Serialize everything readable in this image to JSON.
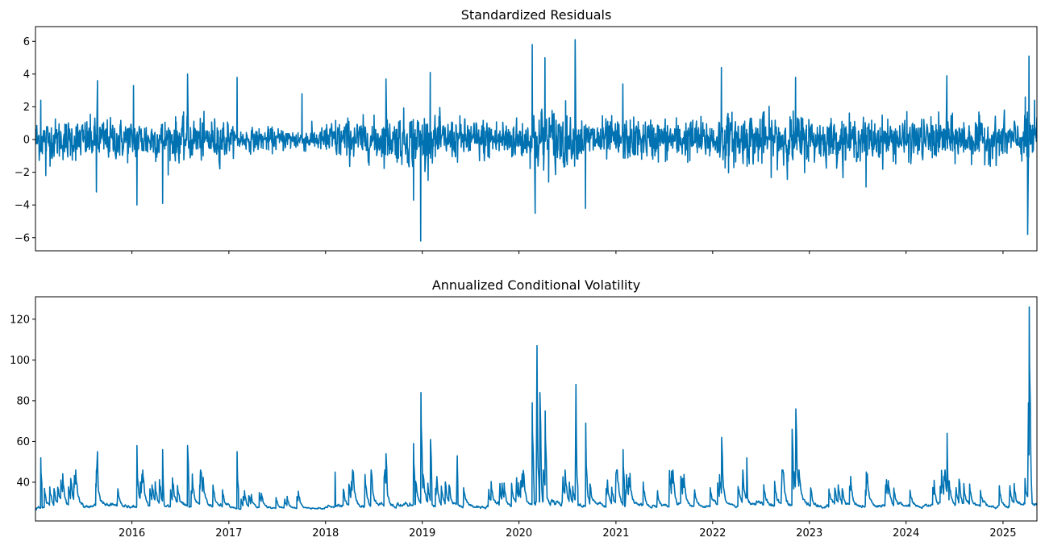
{
  "chart_data": [
    {
      "type": "line",
      "title": "Standardized Residuals",
      "xlabel": "",
      "ylabel": "",
      "x_range": [
        "2015-01-02",
        "2025-05-09"
      ],
      "ylim": [
        -6.8,
        6.9
      ],
      "y_ticks": [
        -6,
        -4,
        -2,
        0,
        2,
        4,
        6
      ],
      "x_ticks_visible": false,
      "grid": false,
      "color": "#0072B2",
      "series": [
        {
          "frequency": "trading-daily",
          "baseline_range": [
            -1.5,
            1.5
          ],
          "notable_points": [
            {
              "x": "2015-01-22",
              "y": 2.4
            },
            {
              "x": "2015-02-10",
              "y": -2.2
            },
            {
              "x": "2015-08-24",
              "y": 3.6
            },
            {
              "x": "2015-08-20",
              "y": -3.2
            },
            {
              "x": "2016-01-07",
              "y": 3.3
            },
            {
              "x": "2016-01-20",
              "y": -4.0
            },
            {
              "x": "2016-04-26",
              "y": -3.9
            },
            {
              "x": "2016-07-29",
              "y": 4.0
            },
            {
              "x": "2017-02-01",
              "y": 3.8
            },
            {
              "x": "2017-10-04",
              "y": 2.8
            },
            {
              "x": "2018-08-17",
              "y": 3.7
            },
            {
              "x": "2018-11-29",
              "y": -3.7
            },
            {
              "x": "2018-12-26",
              "y": -6.2
            },
            {
              "x": "2019-01-31",
              "y": 4.1
            },
            {
              "x": "2020-02-20",
              "y": 5.8
            },
            {
              "x": "2020-03-02",
              "y": -4.5
            },
            {
              "x": "2020-04-08",
              "y": 5.0
            },
            {
              "x": "2020-07-31",
              "y": 6.1
            },
            {
              "x": "2020-09-08",
              "y": -4.2
            },
            {
              "x": "2021-01-27",
              "y": 3.4
            },
            {
              "x": "2022-02-03",
              "y": 4.4
            },
            {
              "x": "2022-11-10",
              "y": 3.8
            },
            {
              "x": "2023-08-03",
              "y": -2.9
            },
            {
              "x": "2024-06-03",
              "y": 3.9
            },
            {
              "x": "2025-04-04",
              "y": -5.8
            },
            {
              "x": "2025-04-09",
              "y": 5.1
            }
          ]
        }
      ]
    },
    {
      "type": "line",
      "title": "Annualized Conditional Volatility",
      "xlabel": "",
      "ylabel": "",
      "x_range": [
        "2015-01-02",
        "2025-05-09"
      ],
      "ylim": [
        21,
        131
      ],
      "y_ticks": [
        40,
        60,
        80,
        100,
        120
      ],
      "x_ticks": [
        "2016",
        "2017",
        "2018",
        "2019",
        "2020",
        "2021",
        "2022",
        "2023",
        "2024",
        "2025"
      ],
      "grid": false,
      "color": "#0072B2",
      "series": [
        {
          "frequency": "trading-daily",
          "baseline_level": 26,
          "notable_points": [
            {
              "x": "2015-01-22",
              "y": 52
            },
            {
              "x": "2015-08-24",
              "y": 55
            },
            {
              "x": "2016-01-20",
              "y": 58
            },
            {
              "x": "2016-04-26",
              "y": 56
            },
            {
              "x": "2016-07-29",
              "y": 58
            },
            {
              "x": "2017-02-01",
              "y": 55
            },
            {
              "x": "2018-02-06",
              "y": 45
            },
            {
              "x": "2018-08-17",
              "y": 54
            },
            {
              "x": "2018-11-29",
              "y": 59
            },
            {
              "x": "2018-12-27",
              "y": 84
            },
            {
              "x": "2019-02-01",
              "y": 61
            },
            {
              "x": "2019-05-13",
              "y": 53
            },
            {
              "x": "2020-02-20",
              "y": 79
            },
            {
              "x": "2020-03-09",
              "y": 107
            },
            {
              "x": "2020-03-20",
              "y": 84
            },
            {
              "x": "2020-04-09",
              "y": 75
            },
            {
              "x": "2020-08-03",
              "y": 88
            },
            {
              "x": "2020-09-09",
              "y": 69
            },
            {
              "x": "2021-01-28",
              "y": 56
            },
            {
              "x": "2022-02-04",
              "y": 62
            },
            {
              "x": "2022-05-10",
              "y": 52
            },
            {
              "x": "2022-10-28",
              "y": 66
            },
            {
              "x": "2022-11-11",
              "y": 76
            },
            {
              "x": "2023-08-04",
              "y": 45
            },
            {
              "x": "2024-06-04",
              "y": 64
            },
            {
              "x": "2025-04-07",
              "y": 79
            },
            {
              "x": "2025-04-10",
              "y": 126
            }
          ]
        }
      ]
    }
  ]
}
